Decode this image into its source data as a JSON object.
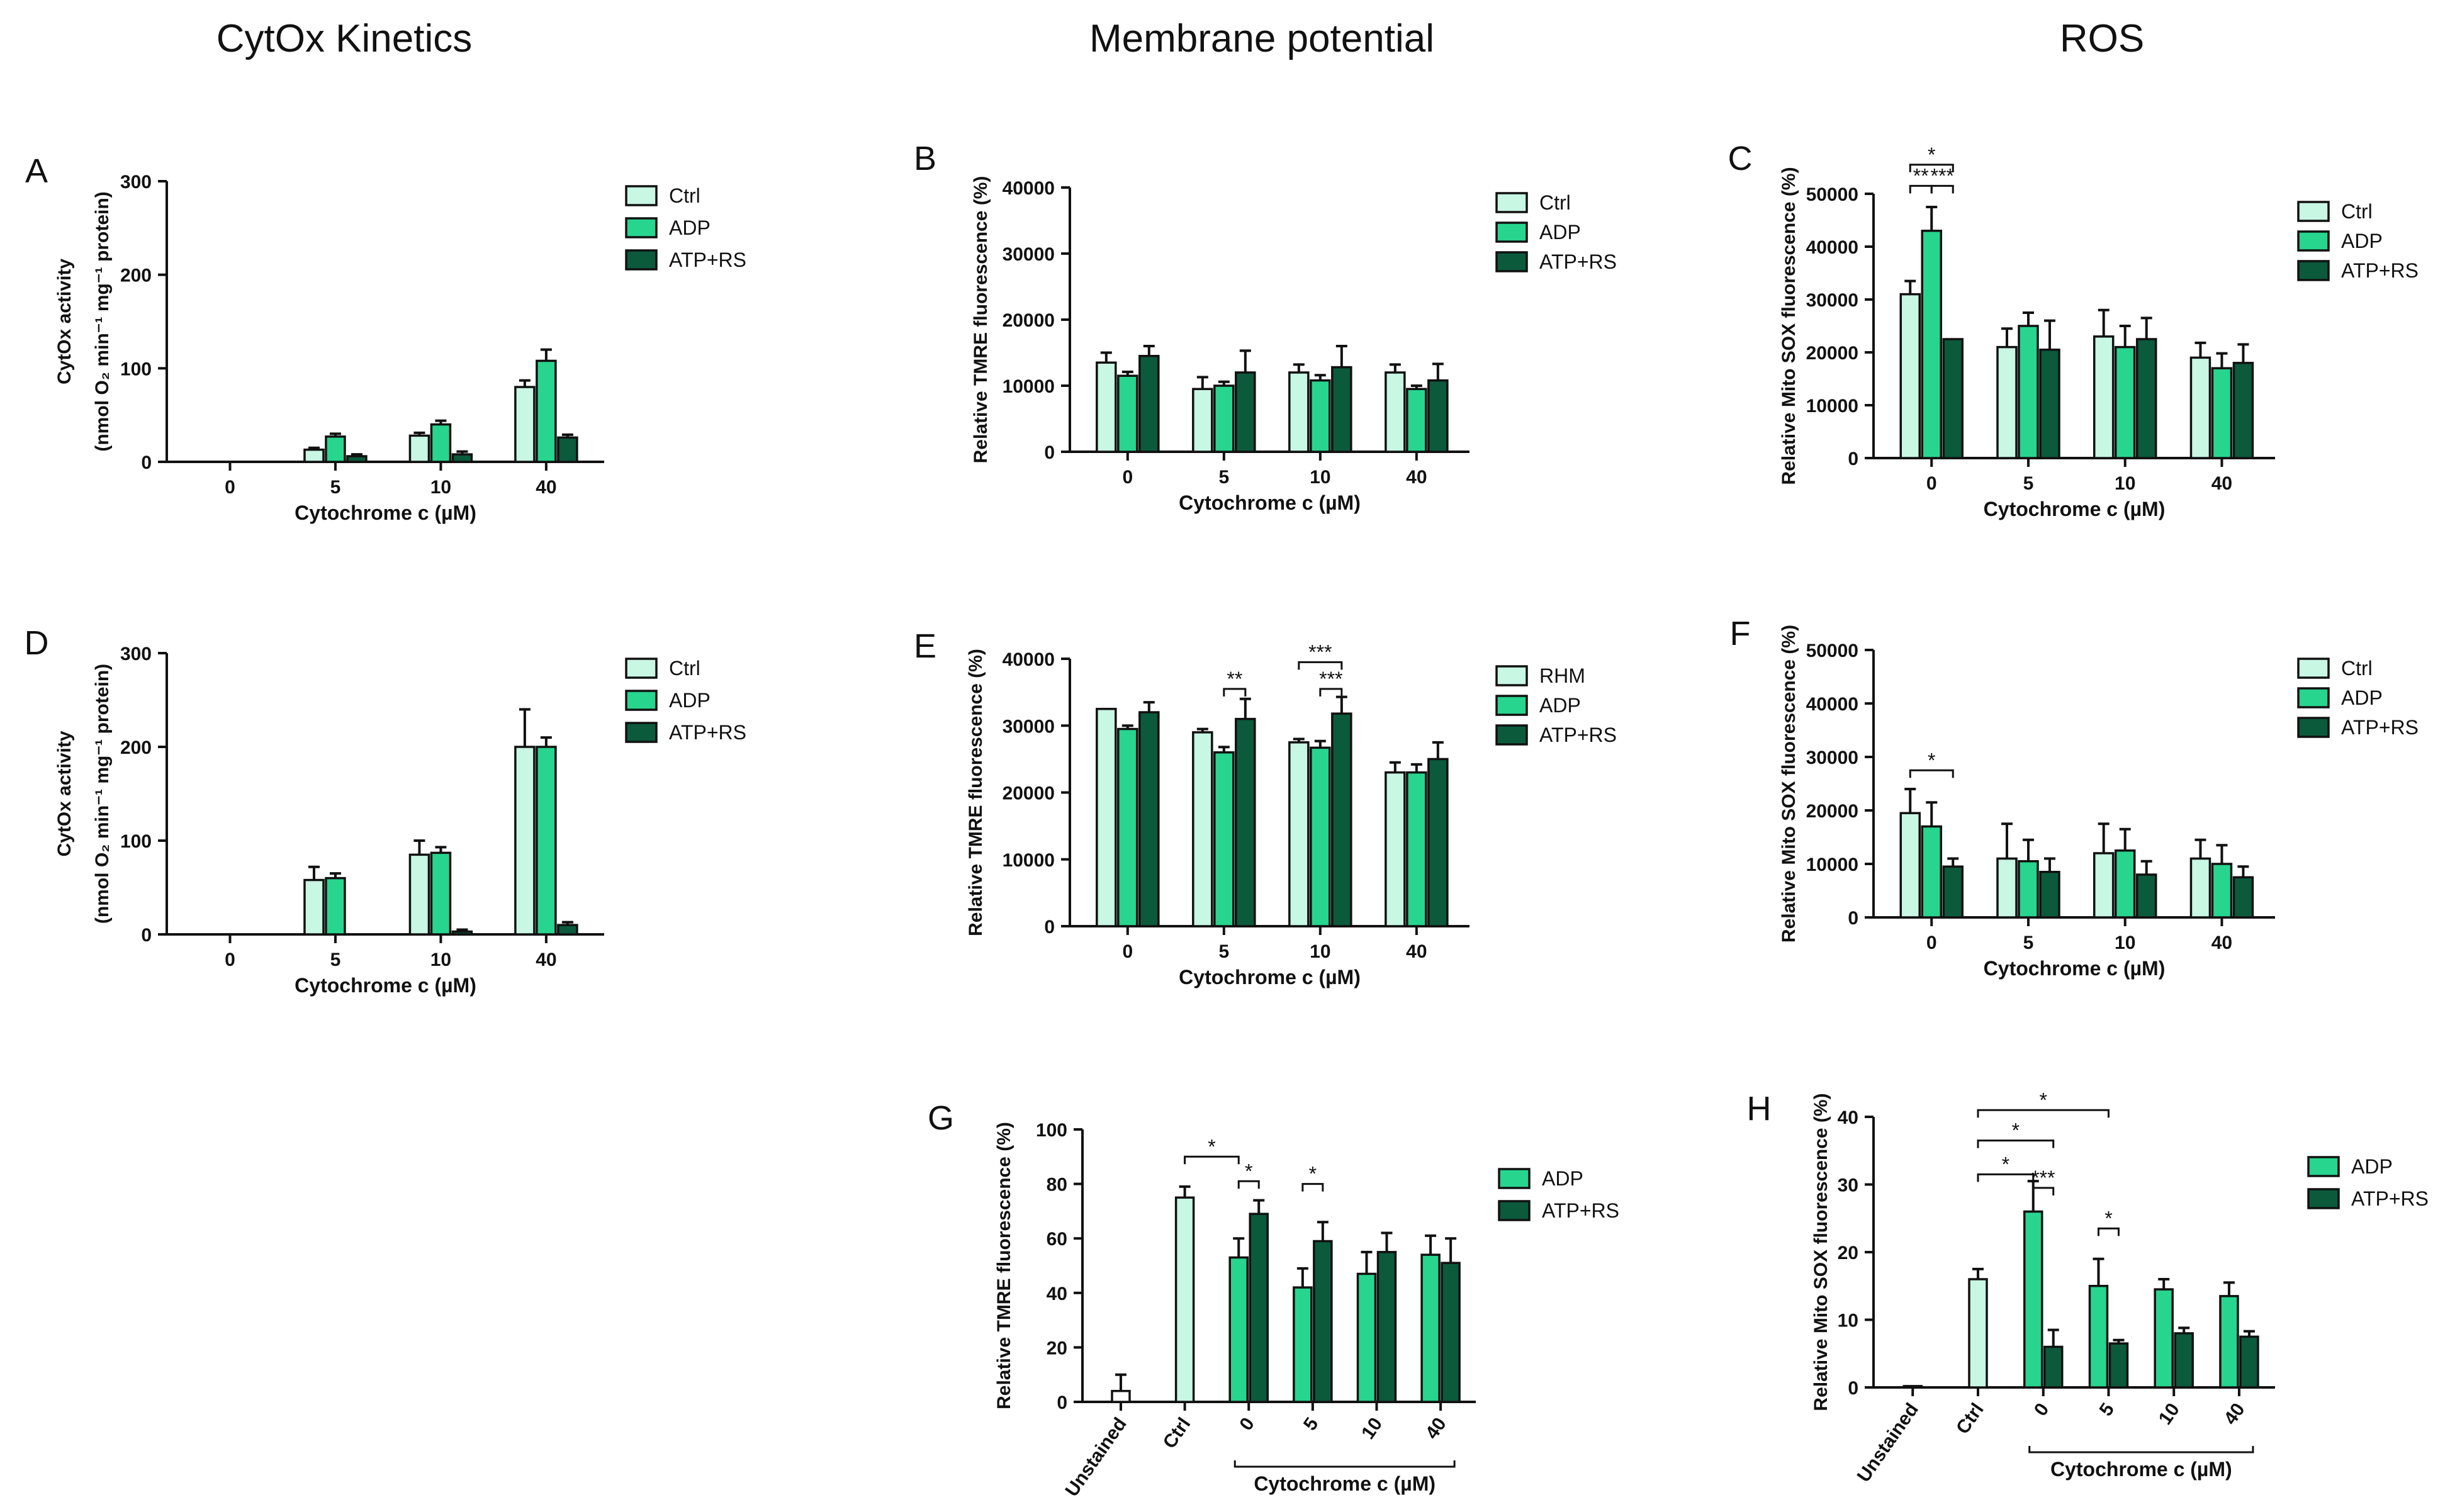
{
  "column_titles": [
    "CytOx Kinetics",
    "Membrane potential",
    "ROS"
  ],
  "colors": {
    "ctrl": "#c8f7e3",
    "adp": "#27d58e",
    "atp_rs": "#0b5a3c",
    "outline": "#111111"
  },
  "chart_data": [
    {
      "id": "A",
      "panel_label": "A",
      "type": "bar",
      "categories": [
        "0",
        "5",
        "10",
        "40"
      ],
      "xlabel": "Cytochrome c (µM)",
      "ylabel_line1": "CytOx activity",
      "ylabel_line2": "(nmol O₂ min⁻¹ mg⁻¹ protein)",
      "ylim": [
        0,
        300
      ],
      "yticks": [
        0,
        100,
        200,
        300
      ],
      "legend": [
        "Ctrl",
        "ADP",
        "ATP+RS"
      ],
      "series": [
        {
          "name": "Ctrl",
          "values": [
            null,
            13,
            28,
            80
          ],
          "errors": [
            null,
            2,
            3,
            7
          ]
        },
        {
          "name": "ADP",
          "values": [
            null,
            27,
            40,
            108
          ],
          "errors": [
            null,
            3,
            4,
            12
          ]
        },
        {
          "name": "ATP+RS",
          "values": [
            null,
            6,
            8,
            26
          ],
          "errors": [
            null,
            2,
            3,
            3
          ]
        }
      ],
      "annotations": []
    },
    {
      "id": "B",
      "panel_label": "B",
      "type": "bar",
      "categories": [
        "0",
        "5",
        "10",
        "40"
      ],
      "xlabel": "Cytochrome c (µM)",
      "ylabel_line1": "Relative TMRE fluorescence (%)",
      "ylim": [
        0,
        40000
      ],
      "yticks": [
        0,
        10000,
        20000,
        30000,
        40000
      ],
      "legend": [
        "Ctrl",
        "ADP",
        "ATP+RS"
      ],
      "series": [
        {
          "name": "Ctrl",
          "values": [
            13500,
            9500,
            12000,
            12000
          ],
          "errors": [
            1500,
            1800,
            1200,
            1200
          ]
        },
        {
          "name": "ADP",
          "values": [
            11500,
            10000,
            10800,
            9500
          ],
          "errors": [
            600,
            600,
            800,
            500
          ]
        },
        {
          "name": "ATP+RS",
          "values": [
            14500,
            12000,
            12800,
            10800
          ],
          "errors": [
            1500,
            3300,
            3200,
            2500
          ]
        }
      ],
      "annotations": []
    },
    {
      "id": "C",
      "panel_label": "C",
      "type": "bar",
      "categories": [
        "0",
        "5",
        "10",
        "40"
      ],
      "xlabel": "Cytochrome c (µM)",
      "ylabel_line1": "Relative Mito SOX fluorescence (%)",
      "ylim": [
        0,
        50000
      ],
      "yticks": [
        0,
        10000,
        20000,
        30000,
        40000,
        50000
      ],
      "legend": [
        "Ctrl",
        "ADP",
        "ATP+RS"
      ],
      "series": [
        {
          "name": "Ctrl",
          "values": [
            31000,
            21000,
            23000,
            19000
          ],
          "errors": [
            2500,
            3500,
            5000,
            2800
          ]
        },
        {
          "name": "ADP",
          "values": [
            43000,
            25000,
            21000,
            17000
          ],
          "errors": [
            4500,
            2500,
            4000,
            2800
          ]
        },
        {
          "name": "ATP+RS",
          "values": [
            22500,
            20500,
            22500,
            18000
          ],
          "errors": [
            0,
            5500,
            4000,
            3500
          ]
        }
      ],
      "annotations": [
        {
          "kind": "bracket",
          "cat": 0,
          "from": 0,
          "to": 2,
          "y": 55500,
          "text": "*"
        },
        {
          "kind": "bracket",
          "cat": 0,
          "from": 0,
          "to": 1,
          "y": 51500,
          "text": "**"
        },
        {
          "kind": "bracket",
          "cat": 0,
          "from": 1,
          "to": 2,
          "y": 51500,
          "text": "***"
        }
      ]
    },
    {
      "id": "D",
      "panel_label": "D",
      "type": "bar",
      "categories": [
        "0",
        "5",
        "10",
        "40"
      ],
      "xlabel": "Cytochrome c (µM)",
      "ylabel_line1": "CytOx activity",
      "ylabel_line2": "(nmol O₂ min⁻¹ mg⁻¹ protein)",
      "ylim": [
        0,
        300
      ],
      "yticks": [
        0,
        100,
        200,
        300
      ],
      "legend": [
        "Ctrl",
        "ADP",
        "ATP+RS"
      ],
      "series": [
        {
          "name": "Ctrl",
          "values": [
            null,
            58,
            85,
            200
          ],
          "errors": [
            null,
            14,
            15,
            40
          ]
        },
        {
          "name": "ADP",
          "values": [
            null,
            60,
            87,
            200
          ],
          "errors": [
            null,
            5,
            6,
            10
          ]
        },
        {
          "name": "ATP+RS",
          "values": [
            null,
            null,
            3,
            10
          ],
          "errors": [
            null,
            null,
            2,
            3
          ]
        }
      ],
      "annotations": []
    },
    {
      "id": "E",
      "panel_label": "E",
      "type": "bar",
      "categories": [
        "0",
        "5",
        "10",
        "40"
      ],
      "xlabel": "Cytochrome c (µM)",
      "ylabel_line1": "Relative TMRE fluorescence (%)",
      "ylim": [
        0,
        40000
      ],
      "yticks": [
        0,
        10000,
        20000,
        30000,
        40000
      ],
      "legend": [
        "RHM",
        "ADP",
        "ATP+RS"
      ],
      "series": [
        {
          "name": "RHM",
          "values": [
            32500,
            29000,
            27500,
            23000
          ],
          "errors": [
            0,
            500,
            500,
            1500
          ]
        },
        {
          "name": "ADP",
          "values": [
            29500,
            26000,
            26700,
            23000
          ],
          "errors": [
            500,
            800,
            1000,
            1200
          ]
        },
        {
          "name": "ATP+RS",
          "values": [
            32000,
            31000,
            31800,
            25000
          ],
          "errors": [
            1500,
            3000,
            2500,
            2500
          ]
        }
      ],
      "annotations": [
        {
          "kind": "bracket",
          "cat": 1,
          "from": 1,
          "to": 2,
          "y": 35500,
          "text": "**"
        },
        {
          "kind": "bracket",
          "cat": 2,
          "from": 0,
          "to": 2,
          "y": 39500,
          "text": "***"
        },
        {
          "kind": "bracket",
          "cat": 2,
          "from": 1,
          "to": 2,
          "y": 35500,
          "text": "***"
        }
      ]
    },
    {
      "id": "F",
      "panel_label": "F",
      "type": "bar",
      "categories": [
        "0",
        "5",
        "10",
        "40"
      ],
      "xlabel": "Cytochrome c (µM)",
      "ylabel_line1": "Relative Mito SOX fluorescence (%)",
      "ylim": [
        0,
        50000
      ],
      "yticks": [
        0,
        10000,
        20000,
        30000,
        40000,
        50000
      ],
      "legend": [
        "Ctrl",
        "ADP",
        "ATP+RS"
      ],
      "series": [
        {
          "name": "Ctrl",
          "values": [
            19500,
            11000,
            12000,
            11000
          ],
          "errors": [
            4500,
            6500,
            5500,
            3500
          ]
        },
        {
          "name": "ADP",
          "values": [
            17000,
            10500,
            12500,
            10000
          ],
          "errors": [
            4500,
            4000,
            4000,
            3500
          ]
        },
        {
          "name": "ATP+RS",
          "values": [
            9500,
            8500,
            8000,
            7500
          ],
          "errors": [
            1500,
            2500,
            2500,
            2000
          ]
        }
      ],
      "annotations": [
        {
          "kind": "bracket",
          "cat": 0,
          "from": 0,
          "to": 2,
          "y": 27500,
          "text": "*"
        }
      ]
    },
    {
      "id": "G",
      "panel_label": "G",
      "type": "bar",
      "categories": [
        "Unstained",
        "Ctrl",
        "0",
        "5",
        "10",
        "40"
      ],
      "rotate_ticks": true,
      "group_bracket": {
        "from_cat": 2,
        "to_cat": 5,
        "label": "Cytochrome c (µM)"
      },
      "ylabel_line1": "Relative TMRE fluorescence (%)",
      "ylim": [
        0,
        100
      ],
      "yticks": [
        0,
        20,
        40,
        60,
        80,
        100
      ],
      "legend": [
        "ADP",
        "ATP+RS"
      ],
      "single_bars": [
        {
          "cat": 0,
          "value": 4,
          "error": 6,
          "color": "#ffffff"
        },
        {
          "cat": 1,
          "value": 75,
          "error": 4,
          "color": "#c8f7e3"
        }
      ],
      "series": [
        {
          "name": "ADP",
          "values": [
            null,
            null,
            53,
            42,
            47,
            54
          ],
          "errors": [
            null,
            null,
            7,
            7,
            8,
            7
          ]
        },
        {
          "name": "ATP+RS",
          "values": [
            null,
            null,
            69,
            59,
            55,
            51
          ],
          "errors": [
            null,
            null,
            5,
            7,
            7,
            9
          ]
        }
      ],
      "annotations": [
        {
          "kind": "long",
          "x1_cat": 1,
          "x2_cat": 2,
          "x2_series": 0,
          "y": 90,
          "text": "*"
        },
        {
          "kind": "bracket",
          "cat": 2,
          "from": 0,
          "to": 1,
          "y": 81,
          "text": "*"
        },
        {
          "kind": "bracket",
          "cat": 3,
          "from": 0,
          "to": 1,
          "y": 80,
          "text": "*"
        }
      ]
    },
    {
      "id": "H",
      "panel_label": "H",
      "type": "bar",
      "categories": [
        "Unstained",
        "Ctrl",
        "0",
        "5",
        "10",
        "40"
      ],
      "rotate_ticks": true,
      "group_bracket": {
        "from_cat": 2,
        "to_cat": 5,
        "label": "Cytochrome c (µM)"
      },
      "ylabel_line1": "Relative Mito SOX fluorescence (%)",
      "ylim": [
        0,
        40
      ],
      "yticks": [
        0,
        10,
        20,
        30,
        40
      ],
      "legend": [
        "ADP",
        "ATP+RS"
      ],
      "single_bars": [
        {
          "cat": 0,
          "value": 0.2,
          "error": 0,
          "color": "#ffffff"
        },
        {
          "cat": 1,
          "value": 16,
          "error": 1.5,
          "color": "#c8f7e3"
        }
      ],
      "series": [
        {
          "name": "ADP",
          "values": [
            null,
            null,
            26,
            15,
            14.5,
            13.5
          ],
          "errors": [
            null,
            null,
            4.5,
            4,
            1.5,
            2
          ]
        },
        {
          "name": "ATP+RS",
          "values": [
            null,
            null,
            6,
            6.5,
            8,
            7.5
          ],
          "errors": [
            null,
            null,
            2.5,
            0.5,
            0.8,
            0.8
          ]
        }
      ],
      "annotations": [
        {
          "kind": "long",
          "x1_cat": 1,
          "x2_cat": 3,
          "x2_series": -1,
          "y": 41,
          "text": "*"
        },
        {
          "kind": "long",
          "x1_cat": 1,
          "x2_cat": 2,
          "x2_series": 1,
          "y": 36.5,
          "text": "*"
        },
        {
          "kind": "long",
          "x1_cat": 1,
          "x2_cat": 2,
          "x2_series": 0,
          "y": 31.5,
          "text": "*"
        },
        {
          "kind": "bracket",
          "cat": 2,
          "from": 0,
          "to": 1,
          "y": 29.5,
          "text": "***"
        },
        {
          "kind": "bracket",
          "cat": 3,
          "from": 0,
          "to": 1,
          "y": 23.5,
          "text": "*"
        }
      ]
    }
  ]
}
